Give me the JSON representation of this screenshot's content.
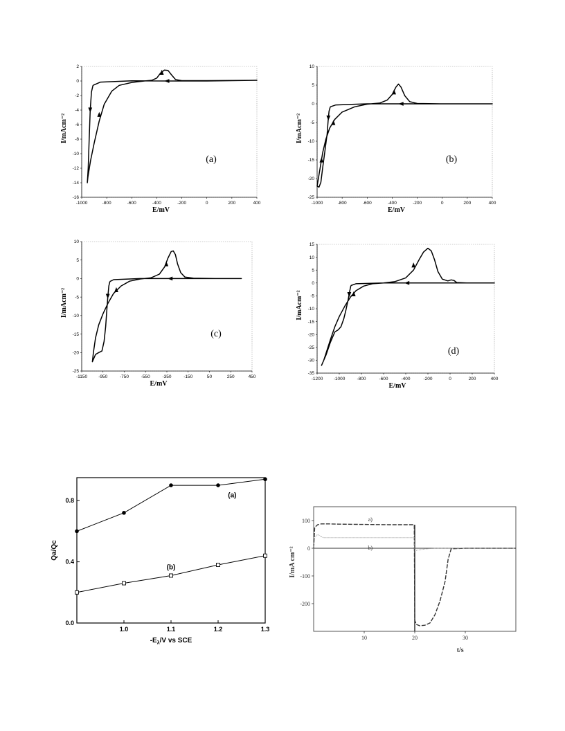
{
  "chart_data": [
    {
      "type": "line",
      "panel_label": "(a)",
      "xlabel": "E/mV",
      "ylabel": "I/mAcm⁻²",
      "xlim": [
        -1000,
        400
      ],
      "ylim": [
        -16,
        2
      ],
      "xticks": [
        -1000,
        -800,
        -600,
        -400,
        -200,
        0,
        200,
        400
      ],
      "yticks": [
        2,
        0,
        -2,
        -4,
        -6,
        -8,
        -10,
        -12,
        -14,
        -16
      ],
      "curve": [
        [
          -910,
          -0.6
        ],
        [
          -922,
          -1.5
        ],
        [
          -932,
          -4
        ],
        [
          -940,
          -8
        ],
        [
          -948,
          -12
        ],
        [
          -955,
          -14
        ],
        [
          -950,
          -13.2
        ],
        [
          -930,
          -11
        ],
        [
          -900,
          -8.5
        ],
        [
          -860,
          -5.5
        ],
        [
          -820,
          -3.2
        ],
        [
          -760,
          -1.4
        ],
        [
          -700,
          -0.6
        ],
        [
          -600,
          -0.2
        ],
        [
          -500,
          0
        ],
        [
          -440,
          0.1
        ],
        [
          -400,
          0.4
        ],
        [
          -370,
          1.1
        ],
        [
          -340,
          1.5
        ],
        [
          -310,
          1.45
        ],
        [
          -280,
          0.8
        ],
        [
          -250,
          0.2
        ],
        [
          -200,
          0.05
        ],
        [
          0,
          0.05
        ],
        [
          200,
          0.08
        ],
        [
          400,
          0.1
        ],
        [
          0,
          0
        ],
        [
          -300,
          0
        ],
        [
          -600,
          0.02
        ],
        [
          -850,
          -0.15
        ],
        [
          -910,
          -0.6
        ]
      ],
      "arrows": [
        [
          -932,
          -4,
          "down"
        ],
        [
          -860,
          -4.6,
          "up"
        ],
        [
          -360,
          1.2,
          "up"
        ],
        [
          -320,
          0,
          "left"
        ]
      ]
    },
    {
      "type": "line",
      "panel_label": "(b)",
      "xlabel": "E/mV",
      "ylabel": "I/mAcm⁻²",
      "xlim": [
        -1000,
        400
      ],
      "ylim": [
        -25,
        10
      ],
      "xticks": [
        -1000,
        -800,
        -600,
        -400,
        -200,
        0,
        200,
        400
      ],
      "yticks": [
        10,
        5,
        0,
        -5,
        -10,
        -15,
        -20,
        -25
      ],
      "curve": [
        [
          -895,
          -0.8
        ],
        [
          -905,
          -2
        ],
        [
          -912,
          -4.5
        ],
        [
          -920,
          -8
        ],
        [
          -935,
          -12
        ],
        [
          -955,
          -17
        ],
        [
          -970,
          -21
        ],
        [
          -985,
          -22.3
        ],
        [
          -1000,
          -22
        ],
        [
          -990,
          -20
        ],
        [
          -975,
          -17
        ],
        [
          -955,
          -13
        ],
        [
          -930,
          -9.5
        ],
        [
          -900,
          -6.5
        ],
        [
          -860,
          -4.2
        ],
        [
          -800,
          -2.2
        ],
        [
          -700,
          -0.8
        ],
        [
          -600,
          -0.1
        ],
        [
          -500,
          0.2
        ],
        [
          -440,
          1
        ],
        [
          -400,
          2.5
        ],
        [
          -370,
          4.5
        ],
        [
          -350,
          5.3
        ],
        [
          -330,
          4.5
        ],
        [
          -300,
          2.2
        ],
        [
          -260,
          0.6
        ],
        [
          -200,
          0.1
        ],
        [
          0,
          0
        ],
        [
          200,
          0
        ],
        [
          400,
          0
        ],
        [
          0,
          0
        ],
        [
          -300,
          0
        ],
        [
          -600,
          0
        ],
        [
          -850,
          -0.3
        ],
        [
          -895,
          -0.8
        ]
      ],
      "arrows": [
        [
          -910,
          -3.8,
          "down"
        ],
        [
          -965,
          -15,
          "up"
        ],
        [
          -870,
          -5,
          "up"
        ],
        [
          -385,
          3.2,
          "up"
        ],
        [
          -330,
          0,
          "left"
        ]
      ]
    },
    {
      "type": "line",
      "panel_label": "(c)",
      "xlabel": "E/mV",
      "ylabel": "I/mAcm⁻²",
      "xlim": [
        -1150,
        450
      ],
      "ylim": [
        -25,
        10
      ],
      "xticks": [
        -1150,
        -950,
        -750,
        -550,
        -350,
        -150,
        50,
        250,
        450
      ],
      "yticks": [
        10,
        5,
        0,
        -5,
        -10,
        -15,
        -20,
        -25
      ],
      "curve": [
        [
          -885,
          -0.8
        ],
        [
          -895,
          -2
        ],
        [
          -905,
          -5
        ],
        [
          -915,
          -9
        ],
        [
          -925,
          -13
        ],
        [
          -940,
          -17
        ],
        [
          -960,
          -19.6
        ],
        [
          -990,
          -20
        ],
        [
          -1020,
          -20.5
        ],
        [
          -1050,
          -22.5
        ],
        [
          -1040,
          -20
        ],
        [
          -1020,
          -16
        ],
        [
          -990,
          -12.5
        ],
        [
          -950,
          -9.5
        ],
        [
          -900,
          -6.5
        ],
        [
          -850,
          -4
        ],
        [
          -780,
          -2
        ],
        [
          -700,
          -0.7
        ],
        [
          -600,
          -0.1
        ],
        [
          -500,
          0.2
        ],
        [
          -420,
          1.2
        ],
        [
          -370,
          3.2
        ],
        [
          -340,
          5.5
        ],
        [
          -310,
          7.3
        ],
        [
          -290,
          7.5
        ],
        [
          -270,
          6.5
        ],
        [
          -250,
          4
        ],
        [
          -220,
          1.6
        ],
        [
          -180,
          0.4
        ],
        [
          -100,
          0.1
        ],
        [
          100,
          0
        ],
        [
          350,
          0
        ],
        [
          100,
          0
        ],
        [
          -300,
          0
        ],
        [
          -600,
          0
        ],
        [
          -850,
          -0.3
        ],
        [
          -885,
          -0.8
        ]
      ],
      "arrows": [
        [
          -905,
          -4.8,
          "down"
        ],
        [
          -825,
          -3,
          "up"
        ],
        [
          -355,
          4,
          "up"
        ],
        [
          -320,
          0,
          "left"
        ]
      ]
    },
    {
      "type": "line",
      "panel_label": "(d)",
      "xlabel": "E/mV",
      "ylabel": "I/mAcm⁻²",
      "xlim": [
        -1200,
        400
      ],
      "ylim": [
        -35,
        15
      ],
      "xticks": [
        -1200,
        -1000,
        -800,
        -600,
        -400,
        -200,
        0,
        200,
        400
      ],
      "yticks": [
        15,
        10,
        5,
        0,
        -5,
        -10,
        -15,
        -20,
        -25,
        -30,
        -35
      ],
      "curve": [
        [
          -895,
          -1
        ],
        [
          -905,
          -3
        ],
        [
          -920,
          -6.5
        ],
        [
          -940,
          -10.5
        ],
        [
          -960,
          -14
        ],
        [
          -985,
          -17
        ],
        [
          -1010,
          -18.2
        ],
        [
          -1040,
          -19
        ],
        [
          -1080,
          -23
        ],
        [
          -1120,
          -28
        ],
        [
          -1160,
          -32
        ],
        [
          -1140,
          -30
        ],
        [
          -1110,
          -26
        ],
        [
          -1080,
          -22
        ],
        [
          -1040,
          -17
        ],
        [
          -1000,
          -13
        ],
        [
          -950,
          -9
        ],
        [
          -900,
          -5.5
        ],
        [
          -850,
          -3
        ],
        [
          -780,
          -1.2
        ],
        [
          -700,
          -0.3
        ],
        [
          -600,
          0
        ],
        [
          -500,
          0.5
        ],
        [
          -400,
          2
        ],
        [
          -330,
          5
        ],
        [
          -280,
          9
        ],
        [
          -240,
          12
        ],
        [
          -200,
          13.5
        ],
        [
          -170,
          12.5
        ],
        [
          -140,
          9
        ],
        [
          -110,
          4.5
        ],
        [
          -70,
          1.5
        ],
        [
          -20,
          0.8
        ],
        [
          10,
          1.2
        ],
        [
          35,
          1
        ],
        [
          60,
          0.2
        ],
        [
          150,
          0
        ],
        [
          400,
          0
        ],
        [
          100,
          0
        ],
        [
          -300,
          0
        ],
        [
          -600,
          0
        ],
        [
          -850,
          -0.3
        ],
        [
          -895,
          -1
        ]
      ],
      "arrows": [
        [
          -910,
          -4.5,
          "down"
        ],
        [
          -870,
          -4.2,
          "up"
        ],
        [
          -330,
          7,
          "up"
        ],
        [
          -390,
          0,
          "left"
        ]
      ]
    },
    {
      "type": "line",
      "xlabel": "-E",
      "xlabel_sub": "λ",
      "xlabel_rest": "/V vs SCE",
      "ylabel": "Qa/Qc",
      "xlim": [
        0.9,
        1.3
      ],
      "ylim": [
        0,
        0.95
      ],
      "xticks": [
        1.0,
        1.1,
        1.2,
        1.3
      ],
      "xtick_labels": [
        "1.0",
        "1.1",
        "1.2",
        "1.3"
      ],
      "yticks": [
        0.0,
        0.4,
        0.8
      ],
      "ytick_labels": [
        "0.0",
        "0.4",
        "0.8"
      ],
      "series": [
        {
          "name": "(a)",
          "marker": "filled-circle",
          "x": [
            0.9,
            1.0,
            1.1,
            1.2,
            1.3
          ],
          "values": [
            0.6,
            0.72,
            0.9,
            0.9,
            0.94
          ]
        },
        {
          "name": "(b)",
          "marker": "open-square",
          "x": [
            0.9,
            1.0,
            1.1,
            1.2,
            1.3
          ],
          "values": [
            0.2,
            0.26,
            0.31,
            0.38,
            0.44
          ]
        }
      ]
    },
    {
      "type": "line",
      "xlabel": "t/s",
      "ylabel": "I/mA cm⁻²",
      "xlim": [
        0,
        40
      ],
      "ylim": [
        -300,
        150
      ],
      "xticks": [
        10,
        20,
        30
      ],
      "yticks": [
        100,
        0,
        -100,
        -200
      ],
      "series": [
        {
          "name": "a)",
          "style": "dashed",
          "x": [
            0,
            0.2,
            0.8,
            1.5,
            3,
            5,
            10,
            15,
            19.9,
            20,
            20.3,
            21,
            22,
            23,
            24,
            25,
            26,
            26.6,
            27.2,
            30,
            40
          ],
          "values": [
            0,
            75,
            85,
            88,
            88,
            87,
            86,
            85,
            85,
            -260,
            -275,
            -280,
            -278,
            -270,
            -240,
            -190,
            -120,
            -40,
            -2,
            0,
            0
          ]
        },
        {
          "name": "b)",
          "style": "dotted",
          "x": [
            0,
            0.2,
            0.8,
            1.5,
            2,
            3,
            5,
            10,
            15,
            19.9,
            20,
            20.3,
            20.8,
            21.5,
            22.5,
            24,
            30,
            40
          ],
          "values": [
            0,
            40,
            50,
            42,
            38,
            38,
            38,
            38,
            38,
            38,
            -10,
            -8,
            -6,
            -4,
            -2,
            0,
            0,
            0
          ]
        }
      ]
    }
  ]
}
